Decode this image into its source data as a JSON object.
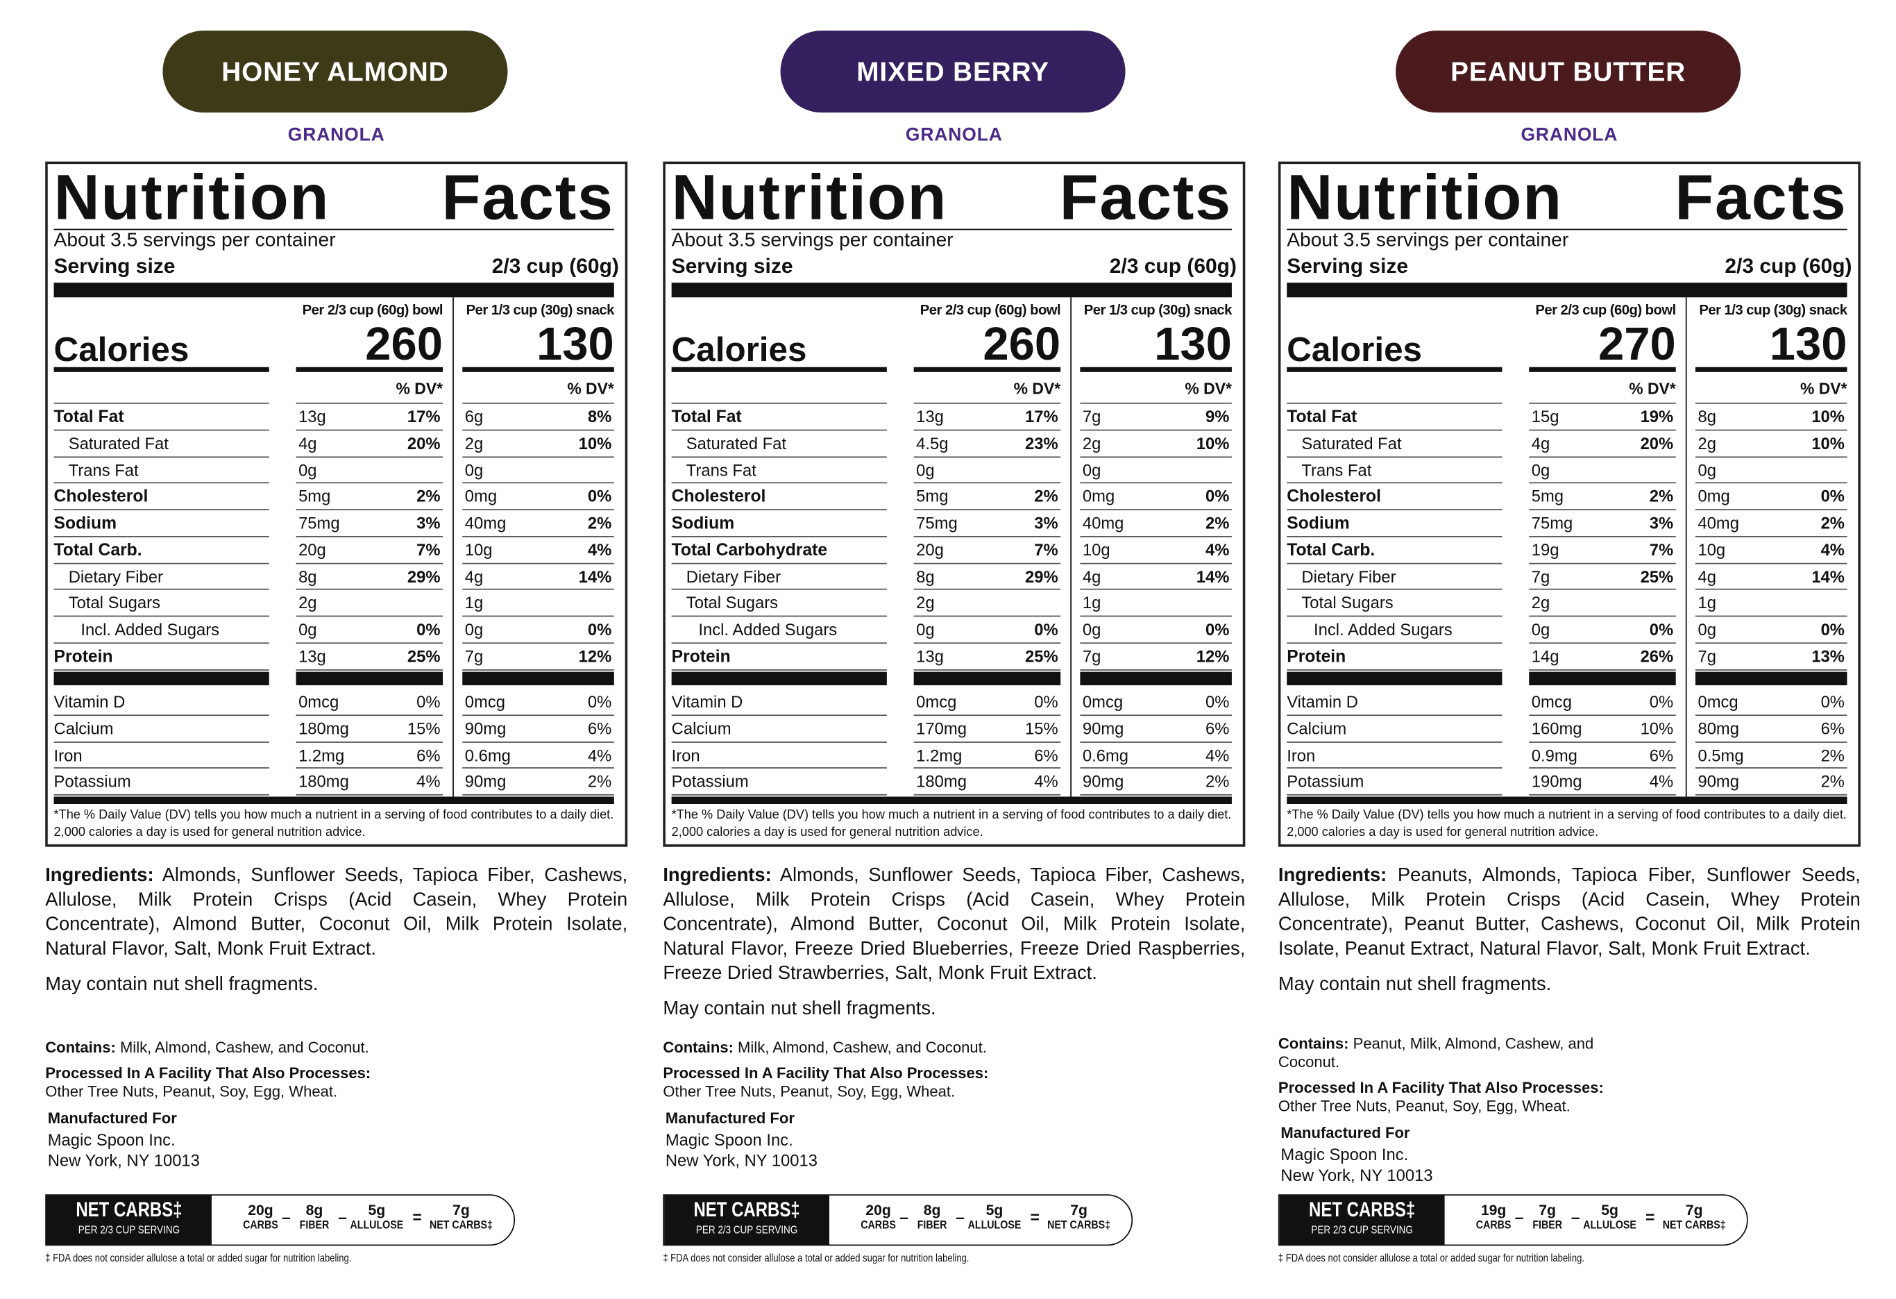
{
  "panels": [
    {
      "flavor": "HONEY ALMOND",
      "subtitle": "GRANOLA",
      "facts": {
        "title": "Nutrition Facts",
        "servings": "About 3.5 servings per container",
        "serving_label": "Serving size",
        "serving_size": "2/3 cup (60g)",
        "col_heads": [
          "Per 2/3 cup (60g) bowl",
          "Per 1/3 cup (30g) snack"
        ],
        "calories_label": "Calories",
        "calories": [
          "260",
          "130"
        ],
        "dv_head": "% DV*",
        "rows": [
          [
            "Total Fat",
            "13g",
            "17%",
            "6g",
            "8%"
          ],
          [
            "Saturated Fat",
            "4g",
            "20%",
            "2g",
            "10%"
          ],
          [
            "Trans Fat",
            "0g",
            null,
            "0g",
            null
          ],
          [
            "Cholesterol",
            "5mg",
            "2%",
            "0mg",
            "0%"
          ],
          [
            "Sodium",
            "75mg",
            "3%",
            "40mg",
            "2%"
          ],
          [
            "Total Carb.",
            "20g",
            "7%",
            "10g",
            "4%"
          ],
          [
            "Dietary Fiber",
            "8g",
            "29%",
            "4g",
            "14%"
          ],
          [
            "Total Sugars",
            "2g",
            null,
            "1g",
            null
          ],
          [
            "Incl. Added Sugars",
            "0g",
            "0%",
            "0g",
            "0%"
          ],
          [
            "Protein",
            "13g",
            "25%",
            "7g",
            "12%"
          ]
        ],
        "vitamins": [
          [
            "Vitamin D",
            "0mcg",
            "0%",
            "0mcg",
            "0%"
          ],
          [
            "Calcium",
            "180mg",
            "15%",
            "90mg",
            "6%"
          ],
          [
            "Iron",
            "1.2mg",
            "6%",
            "0.6mg",
            "4%"
          ],
          [
            "Potassium",
            "180mg",
            "4%",
            "90mg",
            "2%"
          ]
        ],
        "footnote": "*The % Daily Value (DV) tells you how much a nutrient in a serving of food contributes to a daily diet. 2,000 calories a day is used for general nutrition advice."
      },
      "ingredients_label": "Ingredients:",
      "ingredients": "Almonds, Sunflower Seeds, Tapioca Fiber, Cashews, Allulose, Milk Protein Crisps (Acid Casein, Whey Protein Concentrate), Almond Butter, Coconut Oil, Milk Protein Isolate, Natural Flavor, Salt, Monk Fruit Extract.",
      "may_contain": "May contain nut shell fragments.",
      "contains_label": "Contains:",
      "contains": "Milk, Almond, Cashew, and Coconut.",
      "processed_label": "Processed In A Facility That Also Processes:",
      "processed": "Other Tree Nuts, Peanut, Soy, Egg, Wheat.",
      "manufactured": [
        "Manufactured For",
        "Magic Spoon Inc.",
        "New York, NY 10013"
      ],
      "net_carbs": {
        "title": "NET CARBS‡",
        "sub": "PER 2/3 CUP SERVING",
        "items": [
          [
            "20g",
            "CARBS"
          ],
          [
            "8g",
            "FIBER"
          ],
          [
            "5g",
            "ALLULOSE"
          ],
          [
            "7g",
            "NET CARBS‡"
          ]
        ],
        "ops": [
          "–",
          "–",
          "="
        ]
      },
      "fda_note": "‡ FDA does not consider allulose a total or added sugar for nutrition labeling."
    },
    {
      "flavor": "MIXED BERRY",
      "subtitle": "GRANOLA",
      "facts": {
        "title": "Nutrition Facts",
        "servings": "About 3.5 servings per container",
        "serving_label": "Serving size",
        "serving_size": "2/3 cup (60g)",
        "col_heads": [
          "Per 2/3 cup (60g) bowl",
          "Per 1/3 cup (30g) snack"
        ],
        "calories_label": "Calories",
        "calories": [
          "260",
          "130"
        ],
        "dv_head": "% DV*",
        "rows": [
          [
            "Total Fat",
            "13g",
            "17%",
            "7g",
            "9%"
          ],
          [
            "Saturated Fat",
            "4.5g",
            "23%",
            "2g",
            "10%"
          ],
          [
            "Trans Fat",
            "0g",
            null,
            "0g",
            null
          ],
          [
            "Cholesterol",
            "5mg",
            "2%",
            "0mg",
            "0%"
          ],
          [
            "Sodium",
            "75mg",
            "3%",
            "40mg",
            "2%"
          ],
          [
            "Total Carbohydrate",
            "20g",
            "7%",
            "10g",
            "4%"
          ],
          [
            "Dietary Fiber",
            "8g",
            "29%",
            "4g",
            "14%"
          ],
          [
            "Total Sugars",
            "2g",
            null,
            "1g",
            null
          ],
          [
            "Incl. Added Sugars",
            "0g",
            "0%",
            "0g",
            "0%"
          ],
          [
            "Protein",
            "13g",
            "25%",
            "7g",
            "12%"
          ]
        ],
        "vitamins": [
          [
            "Vitamin D",
            "0mcg",
            "0%",
            "0mcg",
            "0%"
          ],
          [
            "Calcium",
            "170mg",
            "15%",
            "90mg",
            "6%"
          ],
          [
            "Iron",
            "1.2mg",
            "6%",
            "0.6mg",
            "4%"
          ],
          [
            "Potassium",
            "180mg",
            "4%",
            "90mg",
            "2%"
          ]
        ],
        "footnote": "*The % Daily Value (DV) tells you how much a nutrient in a serving of food contributes to a daily diet. 2,000 calories a day is used for general nutrition advice."
      },
      "ingredients_label": "Ingredients:",
      "ingredients": "Almonds, Sunflower Seeds, Tapioca Fiber, Cashews, Allulose, Milk Protein Crisps (Acid Casein, Whey Protein Concentrate), Almond Butter, Coconut Oil, Milk Protein Isolate, Natural Flavor, Freeze Dried Blueberries, Freeze Dried Raspberries, Freeze Dried Strawberries, Salt, Monk Fruit Extract.",
      "may_contain": "May contain nut shell fragments.",
      "contains_label": "Contains:",
      "contains": "Milk, Almond, Cashew, and Coconut.",
      "processed_label": "Processed In A Facility That Also Processes:",
      "processed": "Other Tree Nuts, Peanut, Soy, Egg, Wheat.",
      "manufactured": [
        "Manufactured For",
        "Magic Spoon Inc.",
        "New York, NY 10013"
      ],
      "net_carbs": {
        "title": "NET CARBS‡",
        "sub": "PER 2/3 CUP SERVING",
        "items": [
          [
            "20g",
            "CARBS"
          ],
          [
            "8g",
            "FIBER"
          ],
          [
            "5g",
            "ALLULOSE"
          ],
          [
            "7g",
            "NET CARBS‡"
          ]
        ],
        "ops": [
          "–",
          "–",
          "="
        ]
      },
      "fda_note": "‡ FDA does not consider allulose a total or added sugar for nutrition labeling."
    },
    {
      "flavor": "PEANUT BUTTER",
      "subtitle": "GRANOLA",
      "facts": {
        "title": "Nutrition Facts",
        "servings": "About 3.5 servings per container",
        "serving_label": "Serving size",
        "serving_size": "2/3 cup (60g)",
        "col_heads": [
          "Per 2/3 cup (60g) bowl",
          "Per 1/3 cup (30g) snack"
        ],
        "calories_label": "Calories",
        "calories": [
          "270",
          "130"
        ],
        "dv_head": "% DV*",
        "rows": [
          [
            "Total Fat",
            "15g",
            "19%",
            "8g",
            "10%"
          ],
          [
            "Saturated Fat",
            "4g",
            "20%",
            "2g",
            "10%"
          ],
          [
            "Trans Fat",
            "0g",
            null,
            "0g",
            null
          ],
          [
            "Cholesterol",
            "5mg",
            "2%",
            "0mg",
            "0%"
          ],
          [
            "Sodium",
            "75mg",
            "3%",
            "40mg",
            "2%"
          ],
          [
            "Total Carb.",
            "19g",
            "7%",
            "10g",
            "4%"
          ],
          [
            "Dietary Fiber",
            "7g",
            "25%",
            "4g",
            "14%"
          ],
          [
            "Total Sugars",
            "2g",
            null,
            "1g",
            null
          ],
          [
            "Incl. Added Sugars",
            "0g",
            "0%",
            "0g",
            "0%"
          ],
          [
            "Protein",
            "14g",
            "26%",
            "7g",
            "13%"
          ]
        ],
        "vitamins": [
          [
            "Vitamin D",
            "0mcg",
            "0%",
            "0mcg",
            "0%"
          ],
          [
            "Calcium",
            "160mg",
            "10%",
            "80mg",
            "6%"
          ],
          [
            "Iron",
            "0.9mg",
            "6%",
            "0.5mg",
            "2%"
          ],
          [
            "Potassium",
            "190mg",
            "4%",
            "90mg",
            "2%"
          ]
        ],
        "footnote": "*The % Daily Value (DV) tells you how much a nutrient in a serving of food contributes to a daily diet. 2,000 calories a day is used for general nutrition advice."
      },
      "ingredients_label": "Ingredients:",
      "ingredients": "Peanuts, Almonds, Tapioca Fiber, Sunflower Seeds, Allulose, Milk Protein Crisps (Acid Casein, Whey Protein Concentrate), Peanut Butter, Cashews, Coconut Oil, Milk Protein Isolate, Peanut Extract, Natural Flavor, Salt, Monk Fruit Extract.",
      "may_contain": "May contain nut shell fragments.",
      "contains_label": "Contains:",
      "contains": "Peanut, Milk, Almond, Cashew, and Coconut.",
      "processed_label": "Processed In A Facility That Also Processes:",
      "processed": "Other Tree Nuts, Peanut, Soy, Egg, Wheat.",
      "manufactured": [
        "Manufactured For",
        "Magic Spoon Inc.",
        "New York, NY 10013"
      ],
      "net_carbs": {
        "title": "NET CARBS‡",
        "sub": "PER 2/3 CUP SERVING",
        "items": [
          [
            "19g",
            "CARBS"
          ],
          [
            "7g",
            "FIBER"
          ],
          [
            "5g",
            "ALLULOSE"
          ],
          [
            "7g",
            "NET CARBS‡"
          ]
        ],
        "ops": [
          "–",
          "–",
          "="
        ]
      },
      "fda_note": "‡ FDA does not consider allulose a total or added sugar for nutrition labeling."
    }
  ]
}
